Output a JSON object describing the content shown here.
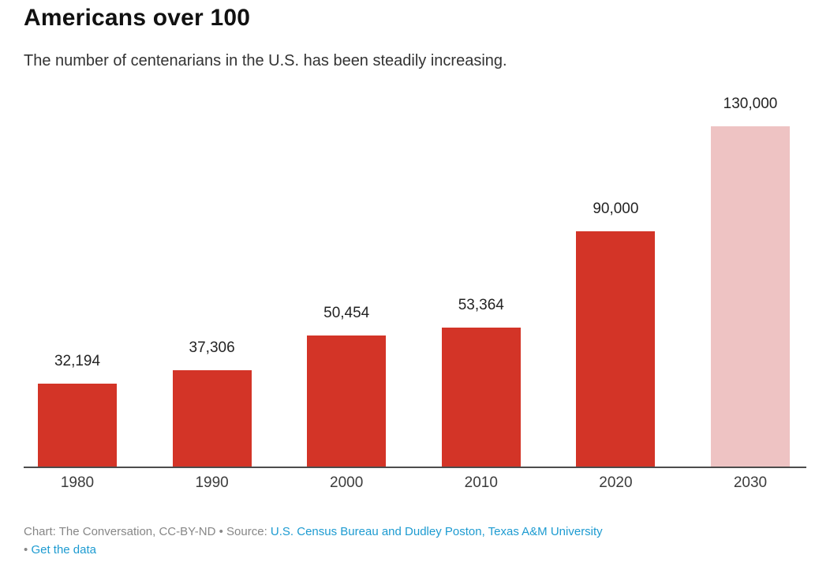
{
  "header": {
    "title": "Americans over 100",
    "subtitle": "The number of centenarians in the U.S. has been steadily increasing."
  },
  "chart_data": {
    "type": "bar",
    "categories": [
      "1980",
      "1990",
      "2000",
      "2010",
      "2020",
      "2030"
    ],
    "values": [
      32194,
      37306,
      50454,
      53364,
      90000,
      130000
    ],
    "value_labels": [
      "32,194",
      "37,306",
      "50,454",
      "53,364",
      "90,000",
      "130,000"
    ],
    "title": "Americans over 100",
    "subtitle": "The number of centenarians in the U.S. has been steadily increasing.",
    "xlabel": "",
    "ylabel": "",
    "ylim": [
      0,
      130000
    ],
    "grid": false,
    "legend": false,
    "bar_color": "#d33427",
    "projected_bar_color": "#eec3c3",
    "projected_index": 5,
    "axis_line_color": "#4c4c4c"
  },
  "footer": {
    "credit": "Chart: The Conversation, CC-BY-ND",
    "separator": "•",
    "source_label": "Source:",
    "source_link_text": "U.S. Census Bureau and Dudley Poston, Texas A&M University",
    "get_data_label": "Get the data",
    "link_color": "#1d9bd1"
  }
}
